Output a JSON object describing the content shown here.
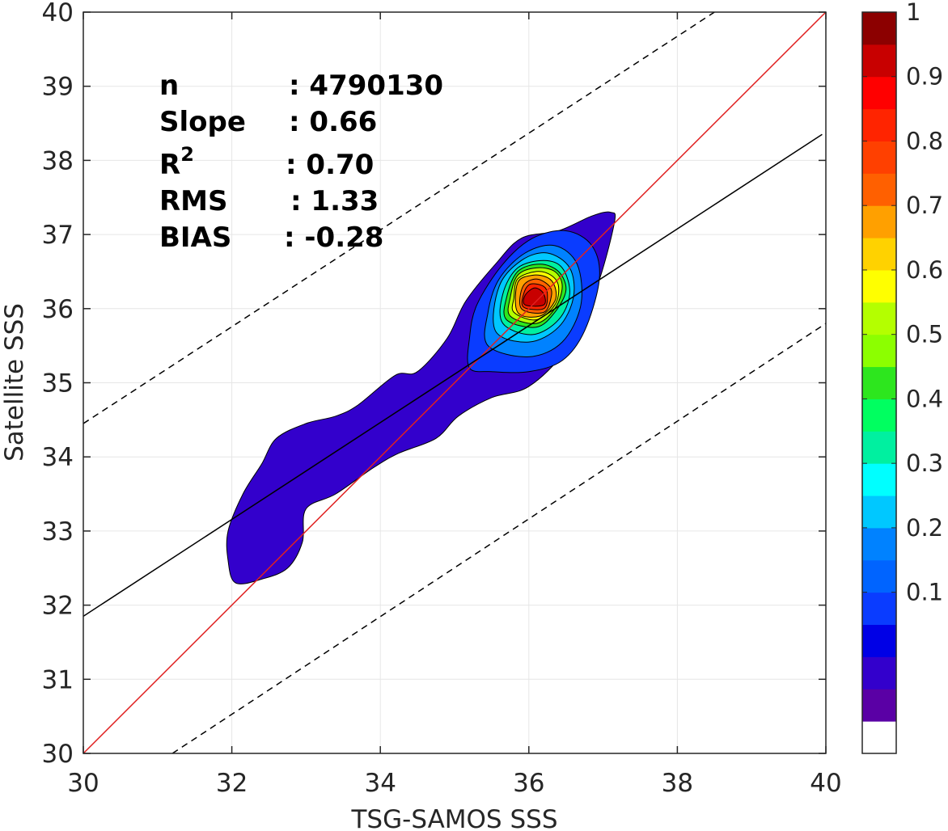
{
  "chart_data": {
    "type": "contour",
    "xlabel": "TSG-SAMOS SSS",
    "ylabel": "Satellite SSS",
    "xlim": [
      30,
      40
    ],
    "ylim": [
      30,
      40
    ],
    "xticks": [
      "30",
      "32",
      "34",
      "36",
      "38",
      "40"
    ],
    "yticks": [
      "30",
      "31",
      "32",
      "33",
      "34",
      "35",
      "36",
      "37",
      "38",
      "39",
      "40"
    ],
    "grid": true,
    "stats": {
      "n_label": "n",
      "n_value": ": 4790130",
      "slope_label": "Slope",
      "slope_value": ": 0.66",
      "r2_label_base": "R",
      "r2_label_sup": "2",
      "r2_value": ": 0.70",
      "rms_label": "RMS",
      "rms_value": ": 1.33",
      "bias_label": "BIAS",
      "bias_value": ": -0.28"
    },
    "lines": [
      {
        "name": "one-to-one",
        "color": "#e02020",
        "style": "solid",
        "points": [
          [
            30,
            30
          ],
          [
            40,
            40
          ]
        ]
      },
      {
        "name": "regression",
        "color": "#000000",
        "style": "solid",
        "points": [
          [
            30,
            31.85
          ],
          [
            39.95,
            38.35
          ]
        ]
      },
      {
        "name": "upper-bound",
        "color": "#000000",
        "style": "dashed",
        "points": [
          [
            30,
            34.45
          ],
          [
            38.5,
            40
          ]
        ]
      },
      {
        "name": "lower-bound",
        "color": "#000000",
        "style": "dashed",
        "points": [
          [
            31.2,
            30
          ],
          [
            40,
            35.8
          ]
        ]
      }
    ],
    "contours": [
      {
        "level": 0.05,
        "color": "#3300cc",
        "points": [
          [
            32.05,
            32.3
          ],
          [
            32.4,
            32.35
          ],
          [
            32.75,
            32.5
          ],
          [
            32.95,
            32.85
          ],
          [
            33.0,
            33.3
          ],
          [
            33.4,
            33.5
          ],
          [
            33.9,
            33.85
          ],
          [
            34.25,
            34.05
          ],
          [
            34.75,
            34.25
          ],
          [
            35.05,
            34.55
          ],
          [
            35.5,
            34.8
          ],
          [
            36.0,
            34.95
          ],
          [
            36.5,
            35.45
          ],
          [
            36.9,
            36.25
          ],
          [
            37.15,
            37.15
          ],
          [
            37.1,
            37.3
          ],
          [
            36.85,
            37.25
          ],
          [
            36.4,
            37.05
          ],
          [
            35.9,
            36.95
          ],
          [
            35.55,
            36.6
          ],
          [
            35.15,
            36.1
          ],
          [
            34.9,
            35.6
          ],
          [
            34.5,
            35.15
          ],
          [
            34.2,
            35.1
          ],
          [
            33.7,
            34.7
          ],
          [
            33.4,
            34.55
          ],
          [
            33.0,
            34.45
          ],
          [
            32.6,
            34.25
          ],
          [
            32.4,
            33.9
          ],
          [
            32.15,
            33.5
          ],
          [
            31.95,
            33.0
          ],
          [
            31.95,
            32.6
          ]
        ]
      },
      {
        "level": 0.15,
        "color": "#0a3cff",
        "points": [
          [
            35.2,
            35.2
          ],
          [
            35.5,
            35.15
          ],
          [
            36.0,
            35.15
          ],
          [
            36.45,
            35.3
          ],
          [
            36.75,
            35.7
          ],
          [
            36.95,
            36.4
          ],
          [
            36.85,
            36.85
          ],
          [
            36.5,
            37.05
          ],
          [
            36.05,
            36.95
          ],
          [
            35.65,
            36.6
          ],
          [
            35.3,
            36.05
          ],
          [
            35.2,
            35.6
          ]
        ]
      },
      {
        "level": 0.25,
        "color": "#0082ff",
        "points": [
          [
            35.45,
            35.5
          ],
          [
            36.0,
            35.35
          ],
          [
            36.45,
            35.55
          ],
          [
            36.7,
            36.05
          ],
          [
            36.65,
            36.6
          ],
          [
            36.35,
            36.85
          ],
          [
            35.95,
            36.75
          ],
          [
            35.6,
            36.4
          ],
          [
            35.45,
            35.95
          ]
        ]
      },
      {
        "level": 0.35,
        "color": "#00c8ff",
        "points": [
          [
            35.55,
            35.7
          ],
          [
            36.0,
            35.55
          ],
          [
            36.4,
            35.75
          ],
          [
            36.6,
            36.15
          ],
          [
            36.55,
            36.55
          ],
          [
            36.25,
            36.75
          ],
          [
            35.9,
            36.65
          ],
          [
            35.6,
            36.3
          ]
        ]
      },
      {
        "level": 0.45,
        "color": "#00f0a0",
        "points": [
          [
            35.65,
            35.8
          ],
          [
            36.05,
            35.65
          ],
          [
            36.4,
            35.85
          ],
          [
            36.55,
            36.2
          ],
          [
            36.45,
            36.55
          ],
          [
            36.2,
            36.65
          ],
          [
            35.85,
            36.55
          ],
          [
            35.65,
            36.2
          ]
        ]
      },
      {
        "level": 0.5,
        "color": "#2de61e",
        "points": [
          [
            35.7,
            35.85
          ],
          [
            36.1,
            35.75
          ],
          [
            36.35,
            35.95
          ],
          [
            36.5,
            36.25
          ],
          [
            36.4,
            36.5
          ],
          [
            36.15,
            36.6
          ],
          [
            35.85,
            36.5
          ],
          [
            35.7,
            36.15
          ]
        ]
      },
      {
        "level": 0.6,
        "color": "#b4ff00",
        "points": [
          [
            35.75,
            35.9
          ],
          [
            36.1,
            35.8
          ],
          [
            36.35,
            36.0
          ],
          [
            36.45,
            36.3
          ],
          [
            36.35,
            36.5
          ],
          [
            36.1,
            36.55
          ],
          [
            35.85,
            36.45
          ],
          [
            35.75,
            36.15
          ]
        ]
      },
      {
        "level": 0.65,
        "color": "#ffff00",
        "points": [
          [
            35.8,
            35.95
          ],
          [
            36.1,
            35.85
          ],
          [
            36.35,
            36.05
          ],
          [
            36.4,
            36.3
          ],
          [
            36.3,
            36.45
          ],
          [
            36.1,
            36.5
          ],
          [
            35.85,
            36.4
          ],
          [
            35.8,
            36.15
          ]
        ]
      },
      {
        "level": 0.7,
        "color": "#ffa000",
        "points": [
          [
            35.85,
            35.95
          ],
          [
            36.15,
            35.9
          ],
          [
            36.35,
            36.1
          ],
          [
            36.35,
            36.3
          ],
          [
            36.25,
            36.42
          ],
          [
            36.05,
            36.45
          ],
          [
            35.85,
            36.35
          ]
        ]
      },
      {
        "level": 0.8,
        "color": "#ff6000",
        "points": [
          [
            35.9,
            36.0
          ],
          [
            36.2,
            35.95
          ],
          [
            36.3,
            36.15
          ],
          [
            36.28,
            36.3
          ],
          [
            36.1,
            36.4
          ],
          [
            35.92,
            36.3
          ]
        ]
      },
      {
        "level": 0.85,
        "color": "#ff2400",
        "points": [
          [
            35.93,
            36.02
          ],
          [
            36.2,
            36.0
          ],
          [
            36.25,
            36.18
          ],
          [
            36.2,
            36.3
          ],
          [
            36.02,
            36.33
          ],
          [
            35.93,
            36.2
          ]
        ]
      },
      {
        "level": 0.9,
        "color": "#c80000",
        "points": [
          [
            35.95,
            36.05
          ],
          [
            36.2,
            36.05
          ],
          [
            36.2,
            36.2
          ],
          [
            36.08,
            36.28
          ],
          [
            35.95,
            36.18
          ]
        ]
      }
    ],
    "colorbar": {
      "ticks": [
        "0.1",
        "0.2",
        "0.3",
        "0.4",
        "0.5",
        "0.6",
        "0.7",
        "0.8",
        "0.9",
        "1"
      ],
      "colors": [
        "#ffffff",
        "#5a00a5",
        "#3300cc",
        "#0000e6",
        "#0a3cff",
        "#0064ff",
        "#0082ff",
        "#00c8ff",
        "#00ffff",
        "#00f0a0",
        "#00ff60",
        "#2de61e",
        "#8cff00",
        "#b4ff00",
        "#ffff00",
        "#ffd200",
        "#ffa000",
        "#ff6000",
        "#ff4000",
        "#ff2400",
        "#ff0000",
        "#c80000",
        "#8c0000"
      ]
    }
  }
}
